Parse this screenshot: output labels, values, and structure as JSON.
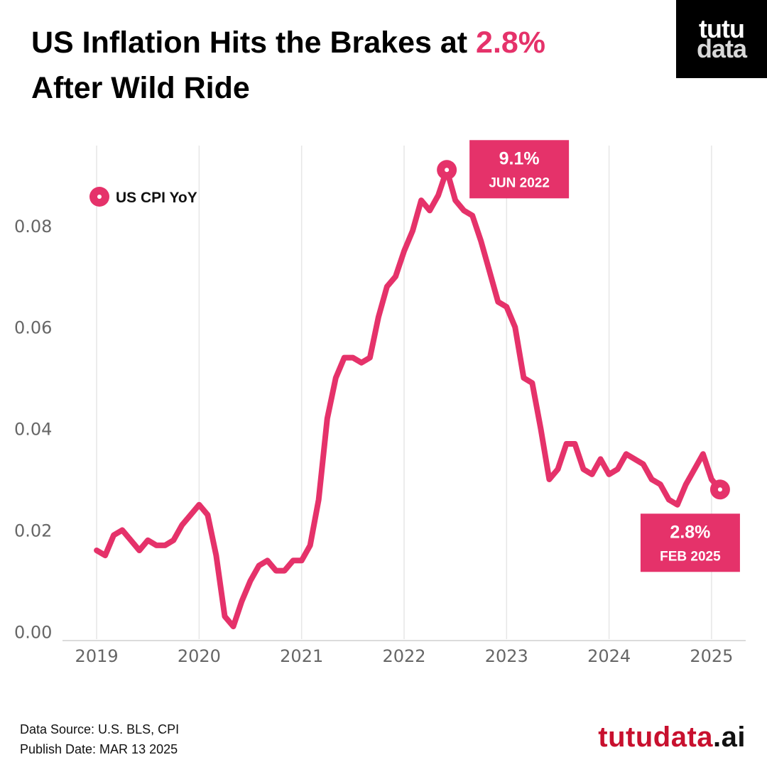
{
  "title": {
    "line1_prefix": "US Inflation Hits the Brakes at ",
    "line1_highlight": "2.8%",
    "line2": "After Wild Ride"
  },
  "logo": {
    "line1": "tutu",
    "line2": "data"
  },
  "colors": {
    "accent": "#e5326a",
    "brand": "#c8102e",
    "grid": "#e6e6e6",
    "axis": "#cfcfcf"
  },
  "chart_data": {
    "type": "line",
    "title": "US Inflation Hits the Brakes at 2.8% After Wild Ride",
    "xlabel": "",
    "ylabel": "",
    "xlim": [
      2018.6667,
      2025.3333
    ],
    "ylim": [
      -0.0015,
      0.0965
    ],
    "yticks": [
      0.0,
      0.02,
      0.04,
      0.06,
      0.08
    ],
    "ytick_labels": [
      "0.00",
      "0.02",
      "0.04",
      "0.06",
      "0.08"
    ],
    "xticks": [
      2019,
      2020,
      2021,
      2022,
      2023,
      2024,
      2025
    ],
    "xtick_labels": [
      "2019",
      "2020",
      "2021",
      "2022",
      "2023",
      "2024",
      "2025"
    ],
    "grid": "vertical",
    "legend": {
      "position": "top-left",
      "entries": [
        "US CPI YoY"
      ]
    },
    "series": [
      {
        "name": "US CPI YoY",
        "start": "2019-01",
        "values": [
          0.016,
          0.015,
          0.019,
          0.02,
          0.018,
          0.016,
          0.018,
          0.017,
          0.017,
          0.018,
          0.021,
          0.023,
          0.025,
          0.023,
          0.015,
          0.003,
          0.001,
          0.006,
          0.01,
          0.013,
          0.014,
          0.012,
          0.012,
          0.014,
          0.014,
          0.017,
          0.026,
          0.042,
          0.05,
          0.054,
          0.054,
          0.053,
          0.054,
          0.062,
          0.068,
          0.07,
          0.075,
          0.079,
          0.085,
          0.083,
          0.086,
          0.091,
          0.085,
          0.083,
          0.082,
          0.077,
          0.071,
          0.065,
          0.064,
          0.06,
          0.05,
          0.049,
          0.04,
          0.03,
          0.032,
          0.037,
          0.037,
          0.032,
          0.031,
          0.034,
          0.031,
          0.032,
          0.035,
          0.034,
          0.033,
          0.03,
          0.029,
          0.026,
          0.025,
          0.029,
          0.032,
          0.035,
          0.03,
          0.028
        ]
      }
    ],
    "annotations": [
      {
        "value": "9.1%",
        "date": "JUN 2022",
        "x": 2022.4167,
        "y": 0.091
      },
      {
        "value": "2.8%",
        "date": "FEB 2025",
        "x": 2025.0833,
        "y": 0.028
      }
    ]
  },
  "footer": {
    "source": "Data Source: U.S. BLS, CPI",
    "publish": "Publish Date: MAR 13 2025"
  },
  "brand": {
    "name": "tutudata",
    "dot": ".",
    "tld": "ai"
  }
}
